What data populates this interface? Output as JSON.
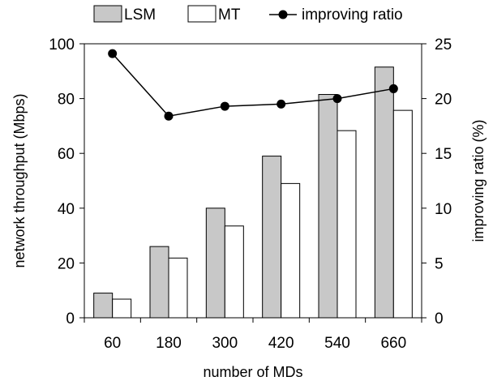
{
  "chart_data": {
    "type": "bar",
    "categories": [
      "60",
      "180",
      "300",
      "420",
      "540",
      "660"
    ],
    "xlabel": "number of MDs",
    "ylabel": "network throughput (Mbps)",
    "y2label": "improving ratio (%)",
    "ylim": [
      0,
      100
    ],
    "y2lim": [
      0,
      25
    ],
    "yticks": [
      "0",
      "20",
      "40",
      "60",
      "80",
      "100"
    ],
    "y2ticks": [
      "0",
      "5",
      "10",
      "15",
      "20",
      "25"
    ],
    "legend_position": "top",
    "grid": false,
    "series": [
      {
        "name": "LSM",
        "kind": "bar",
        "axis": "left",
        "color": "#c8c8c8",
        "values": [
          9,
          26,
          40,
          59,
          81.5,
          91.5
        ]
      },
      {
        "name": "MT",
        "kind": "bar",
        "axis": "left",
        "color": "#ffffff",
        "values": [
          6.8,
          21.8,
          33.5,
          49,
          68.3,
          75.7
        ]
      },
      {
        "name": "improving ratio",
        "kind": "line",
        "axis": "right",
        "color": "#000000",
        "values": [
          24.1,
          18.4,
          19.3,
          19.5,
          20,
          20.9
        ]
      }
    ]
  }
}
